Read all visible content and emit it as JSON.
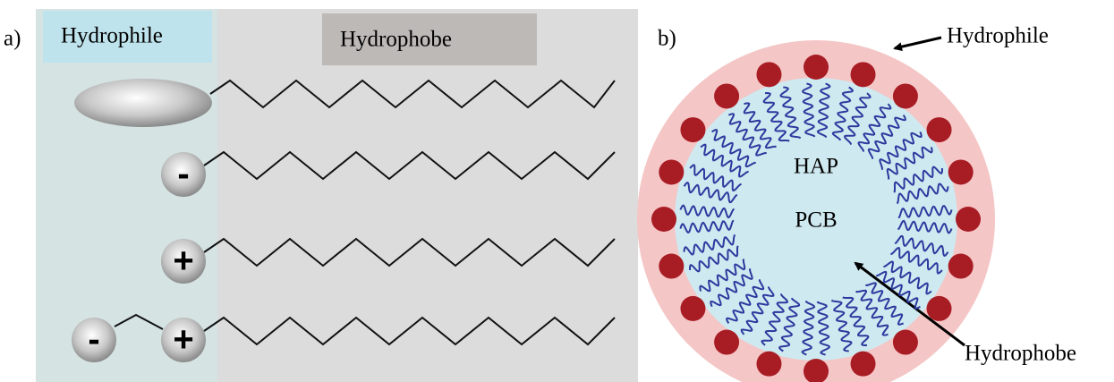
{
  "panel_a": {
    "label": "a)",
    "hydrophile_label": "Hydrophile",
    "hydrophobe_label": "Hydrophobe",
    "heads": [
      {
        "signs": []
      },
      {
        "signs": [
          "-"
        ]
      },
      {
        "signs": [
          "+"
        ]
      },
      {
        "signs": [
          "-",
          "+"
        ]
      }
    ]
  },
  "panel_b": {
    "label": "b)",
    "hydrophile_label": "Hydrophile",
    "hydrophobe_label": "Hydrophobe",
    "core_labels": [
      "HAP",
      "PCB"
    ]
  }
}
